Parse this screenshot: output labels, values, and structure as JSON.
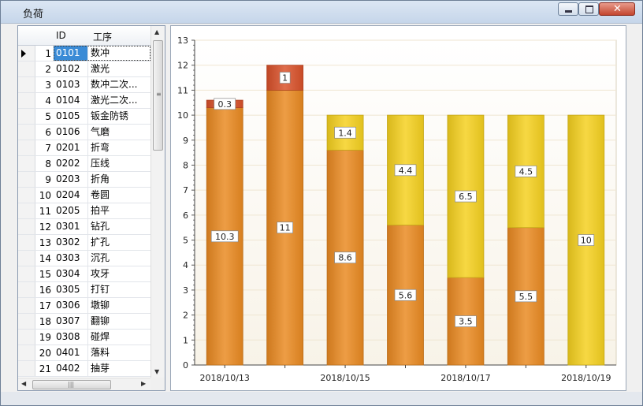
{
  "window": {
    "title": "负荷"
  },
  "grid": {
    "headers": {
      "id": "ID",
      "name": "工序"
    },
    "active_row_index": 0,
    "rows": [
      {
        "num": "1",
        "id": "0101",
        "name": "数冲"
      },
      {
        "num": "2",
        "id": "0102",
        "name": "激光"
      },
      {
        "num": "3",
        "id": "0103",
        "name": "数冲二次..."
      },
      {
        "num": "4",
        "id": "0104",
        "name": "激光二次..."
      },
      {
        "num": "5",
        "id": "0105",
        "name": "钣金防锈"
      },
      {
        "num": "6",
        "id": "0106",
        "name": "气磨"
      },
      {
        "num": "7",
        "id": "0201",
        "name": "折弯"
      },
      {
        "num": "8",
        "id": "0202",
        "name": "压线"
      },
      {
        "num": "9",
        "id": "0203",
        "name": "折角"
      },
      {
        "num": "10",
        "id": "0204",
        "name": "卷圆"
      },
      {
        "num": "11",
        "id": "0205",
        "name": "拍平"
      },
      {
        "num": "12",
        "id": "0301",
        "name": "钻孔"
      },
      {
        "num": "13",
        "id": "0302",
        "name": "扩孔"
      },
      {
        "num": "14",
        "id": "0303",
        "name": "沉孔"
      },
      {
        "num": "15",
        "id": "0304",
        "name": "攻牙"
      },
      {
        "num": "16",
        "id": "0305",
        "name": "打钉"
      },
      {
        "num": "17",
        "id": "0306",
        "name": "墩铆"
      },
      {
        "num": "18",
        "id": "0307",
        "name": "翻铆"
      },
      {
        "num": "19",
        "id": "0308",
        "name": "碰焊"
      },
      {
        "num": "20",
        "id": "0401",
        "name": "落料"
      },
      {
        "num": "21",
        "id": "0402",
        "name": "抽芽"
      }
    ]
  },
  "colors": {
    "orange": "#ea8a22",
    "red": "#d9512a",
    "yellow": "#f5d11f"
  },
  "chart_data": {
    "type": "bar",
    "stacked": true,
    "title": "",
    "xlabel": "",
    "ylabel": "",
    "ylim": [
      0,
      13
    ],
    "yticks": [
      "0",
      "1",
      "2",
      "3",
      "4",
      "5",
      "6",
      "7",
      "8",
      "9",
      "10",
      "11",
      "12",
      "13"
    ],
    "categories": [
      "2018/10/13",
      "",
      "2018/10/15",
      "",
      "2018/10/17",
      "",
      "2018/10/19"
    ],
    "bars": [
      {
        "segments": [
          {
            "value": 10.3,
            "label": "10.3",
            "color": "#ea8a22"
          },
          {
            "value": 0.3,
            "label": "0.3",
            "color": "#d9512a"
          }
        ]
      },
      {
        "segments": [
          {
            "value": 11,
            "label": "11",
            "color": "#ea8a22"
          },
          {
            "value": 1,
            "label": "1",
            "color": "#d9512a"
          }
        ]
      },
      {
        "segments": [
          {
            "value": 8.6,
            "label": "8.6",
            "color": "#ea8a22"
          },
          {
            "value": 1.4,
            "label": "1.4",
            "color": "#f5d11f"
          }
        ]
      },
      {
        "segments": [
          {
            "value": 5.6,
            "label": "5.6",
            "color": "#ea8a22"
          },
          {
            "value": 4.4,
            "label": "4.4",
            "color": "#f5d11f"
          }
        ]
      },
      {
        "segments": [
          {
            "value": 3.5,
            "label": "3.5",
            "color": "#ea8a22"
          },
          {
            "value": 6.5,
            "label": "6.5",
            "color": "#f5d11f"
          }
        ]
      },
      {
        "segments": [
          {
            "value": 5.5,
            "label": "5.5",
            "color": "#ea8a22"
          },
          {
            "value": 4.5,
            "label": "4.5",
            "color": "#f5d11f"
          }
        ]
      },
      {
        "segments": [
          {
            "value": 10,
            "label": "10",
            "color": "#f5d11f"
          }
        ]
      }
    ],
    "grid": true,
    "legend": "none"
  }
}
